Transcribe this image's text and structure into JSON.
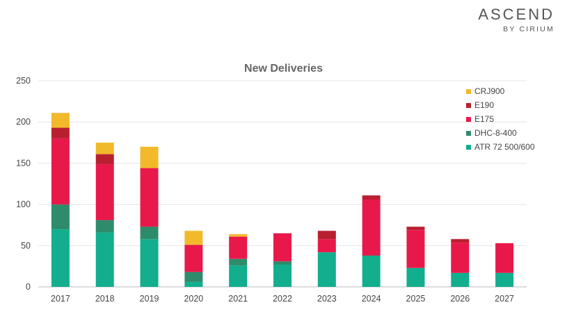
{
  "logo": {
    "main": "ASCEND",
    "sub": "BY CIRIUM"
  },
  "chart_data": {
    "type": "bar",
    "stacked": true,
    "title": "New Deliveries",
    "xlabel": "",
    "ylabel": "",
    "ylim": [
      0,
      250
    ],
    "yticks": [
      0,
      50,
      100,
      150,
      200,
      250
    ],
    "grid": true,
    "legend_position": "top-right",
    "categories": [
      "2017",
      "2018",
      "2019",
      "2020",
      "2021",
      "2022",
      "2023",
      "2024",
      "2025",
      "2026",
      "2027"
    ],
    "series": [
      {
        "name": "ATR 72 500/600",
        "color": "#12ae8e",
        "values": [
          70,
          66,
          58,
          6,
          26,
          27,
          42,
          38,
          23,
          17,
          17
        ]
      },
      {
        "name": "DHC-8-400",
        "color": "#2e8b6b",
        "values": [
          30,
          15,
          15,
          12,
          8,
          4,
          0,
          0,
          0,
          0,
          0
        ]
      },
      {
        "name": "E175",
        "color": "#e8194a",
        "values": [
          80,
          68,
          71,
          33,
          27,
          34,
          16,
          68,
          46,
          37,
          36
        ]
      },
      {
        "name": "E190",
        "color": "#b8202f",
        "values": [
          13,
          12,
          0,
          0,
          0,
          0,
          10,
          5,
          4,
          4,
          0
        ]
      },
      {
        "name": "CRJ900",
        "color": "#f2b92b",
        "values": [
          18,
          14,
          26,
          17,
          3,
          0,
          0,
          0,
          0,
          0,
          0
        ]
      }
    ],
    "legend_order": [
      "CRJ900",
      "E190",
      "E175",
      "DHC-8-400",
      "ATR 72 500/600"
    ]
  }
}
